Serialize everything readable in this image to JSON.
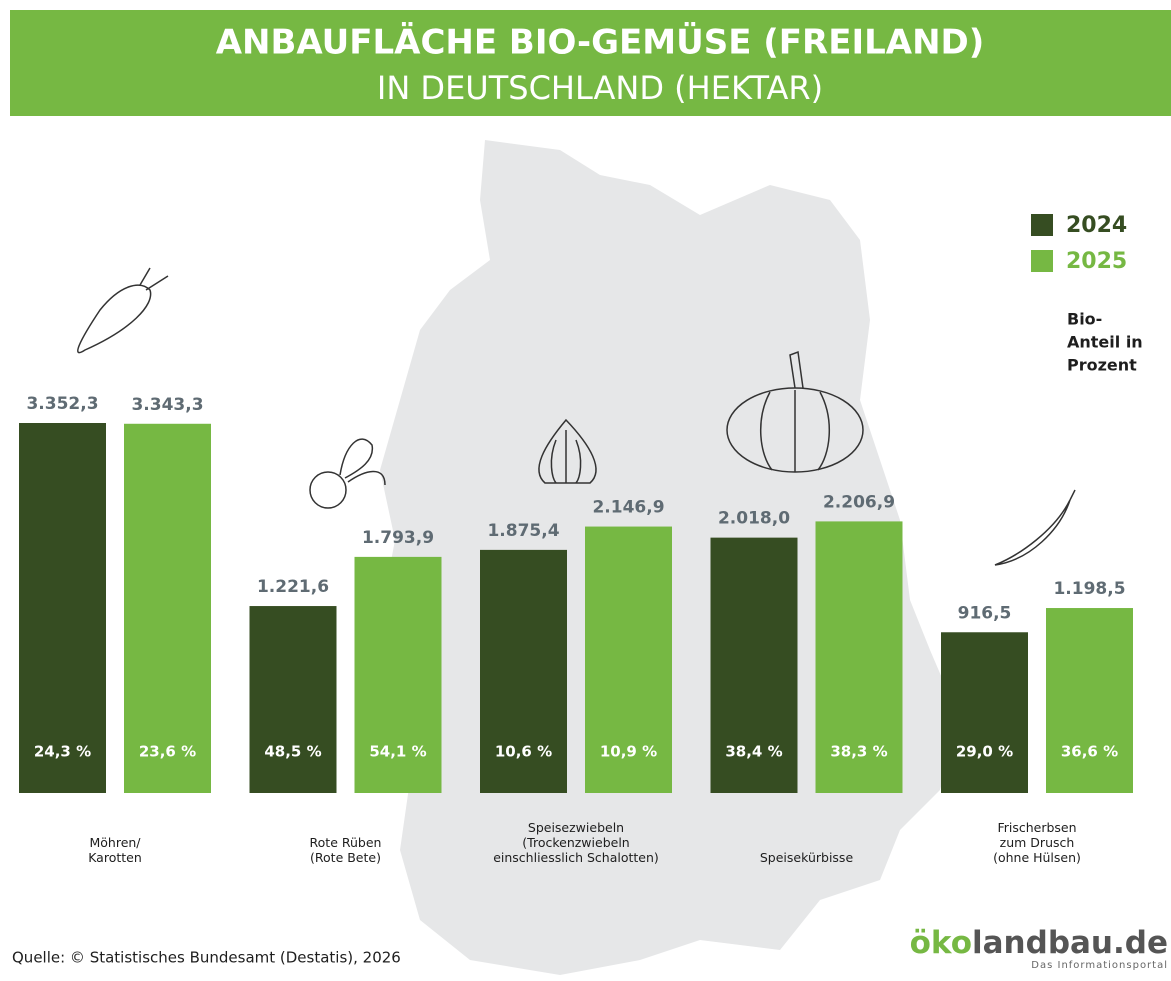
{
  "chart_data": {
    "type": "bar",
    "title": [
      "ANBAUFLÄCHE BIO-GEMÜSE (FREILAND)",
      "IN DEUTSCHLAND (HEKTAR)"
    ],
    "categories": [
      [
        "Möhren/",
        "Karotten"
      ],
      [
        "Rote Rüben",
        "(Rote Bete)"
      ],
      [
        "Speisezwiebeln",
        "(Trockenzwiebeln",
        "einschliesslich Schalotten)"
      ],
      [
        "Speisekürbisse"
      ],
      [
        "Frischerbsen",
        "zum Drusch",
        "(ohne Hülsen)"
      ]
    ],
    "series": [
      {
        "name": "2024",
        "color": "#364d22",
        "values": [
          3352.3,
          1221.6,
          1875.4,
          2018.0,
          916.5
        ],
        "value_labels": [
          "3.352,3",
          "1.221,6",
          "1.875,4",
          "2.018,0",
          "916,5"
        ],
        "bio_share": [
          24.3,
          48.5,
          10.6,
          38.4,
          29.0
        ],
        "bio_share_labels": [
          "24,3 %",
          "48,5 %",
          "10,6 %",
          "38,4 %",
          "29,0 %"
        ]
      },
      {
        "name": "2025",
        "color": "#76b843",
        "values": [
          3343.3,
          1793.9,
          2146.9,
          2206.9,
          1198.5
        ],
        "value_labels": [
          "3.343,3",
          "1.793,9",
          "2.146,9",
          "2.206,9",
          "1.198,5"
        ],
        "bio_share": [
          23.6,
          54.1,
          10.9,
          38.3,
          36.6
        ],
        "bio_share_labels": [
          "23,6 %",
          "54,1 %",
          "10,9 %",
          "38,3 %",
          "36,6 %"
        ]
      }
    ],
    "legend_note": [
      "Bio-",
      "Anteil in",
      "Prozent"
    ],
    "legend_position": "top-right",
    "source": "Quelle: © Statistisches Bundesamt (Destatis), 2026",
    "logo": {
      "brand": [
        "öko",
        "landbau.de"
      ],
      "tagline": "Das Informationsportal"
    }
  }
}
